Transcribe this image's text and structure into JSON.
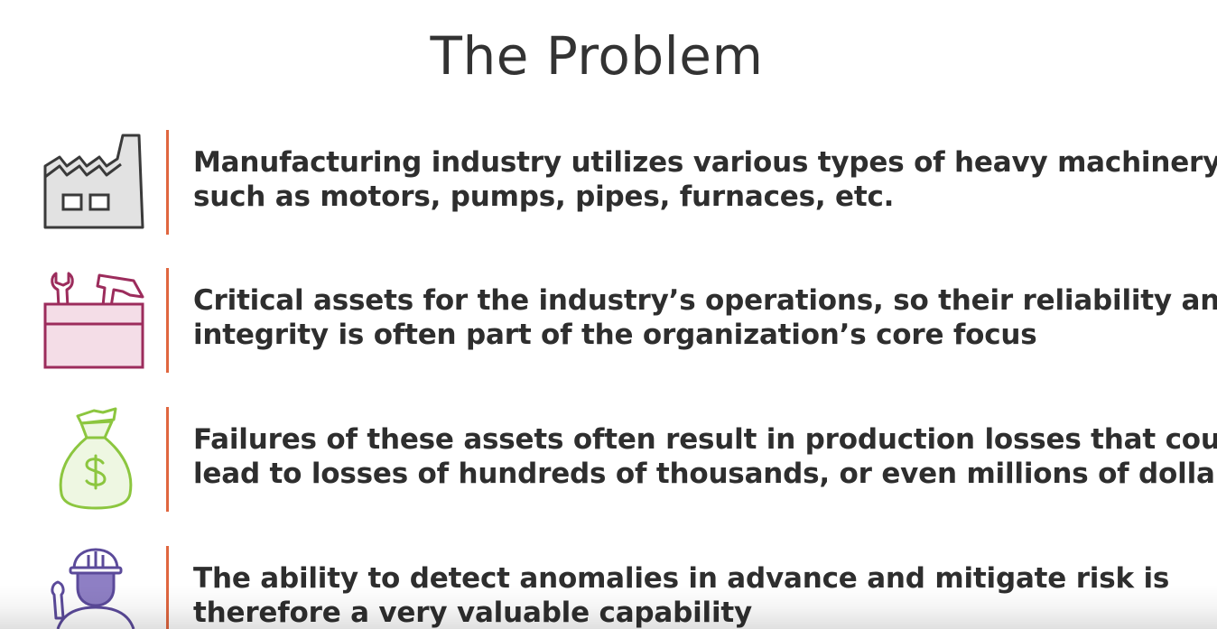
{
  "slide": {
    "title": "The Problem"
  },
  "colors": {
    "divider": "#e0663f",
    "factory_icon": "#3a3a3a",
    "toolbox_icon": "#9c2c5c",
    "money_icon": "#8cc63f",
    "worker_icon": "#5b4a9a"
  },
  "items": [
    {
      "icon": "factory-icon",
      "line1": "Manufacturing industry utilizes various types of heavy machinery",
      "line2": "such as motors, pumps, pipes, furnaces, etc."
    },
    {
      "icon": "toolbox-icon",
      "line1": "Critical assets for the industry’s operations, so their reliability and",
      "line2": "integrity is often part of the organization’s core focus"
    },
    {
      "icon": "money-bag-icon",
      "line1": "Failures of these assets often result in production losses that could",
      "line2": "lead to losses of hundreds of thousands, or even millions of dollars"
    },
    {
      "icon": "worker-icon",
      "line1": "The ability to detect anomalies in advance and mitigate risk is",
      "line2": "therefore a very valuable capability"
    }
  ]
}
